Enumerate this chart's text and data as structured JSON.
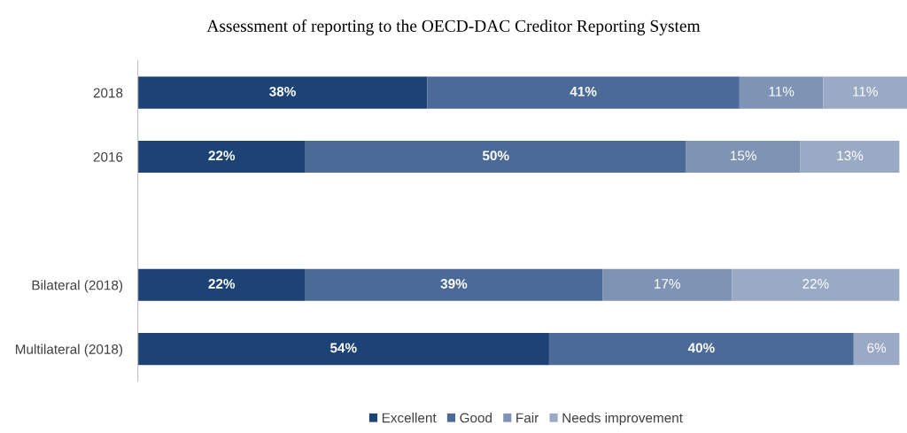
{
  "chart_data": {
    "type": "bar",
    "orientation": "horizontal",
    "stacked": true,
    "title": "Assessment of reporting to the OECD-DAC Creditor Reporting System",
    "categories": [
      "2018",
      "2016",
      null,
      "Bilateral (2018)",
      "Multilateral (2018)"
    ],
    "series": [
      {
        "name": "Excellent",
        "color": "#1d4275",
        "values": [
          38,
          22,
          null,
          22,
          54
        ],
        "value_labels": [
          "38%",
          "22%",
          null,
          "22%",
          "54%"
        ]
      },
      {
        "name": "Good",
        "color": "#4b6a97",
        "values": [
          41,
          50,
          null,
          39,
          40
        ],
        "value_labels": [
          "41%",
          "50%",
          null,
          "39%",
          "40%"
        ]
      },
      {
        "name": "Fair",
        "color": "#7f94b5",
        "values": [
          11,
          15,
          null,
          17,
          null
        ],
        "value_labels": [
          "11%",
          "15%",
          null,
          "17%",
          null
        ]
      },
      {
        "name": "Needs improvement",
        "color": "#9aaac4",
        "values": [
          11,
          13,
          null,
          22,
          6
        ],
        "value_labels": [
          "11%",
          "13%",
          null,
          "22%",
          "6%"
        ]
      }
    ],
    "legend": "bottom",
    "grid": false
  }
}
